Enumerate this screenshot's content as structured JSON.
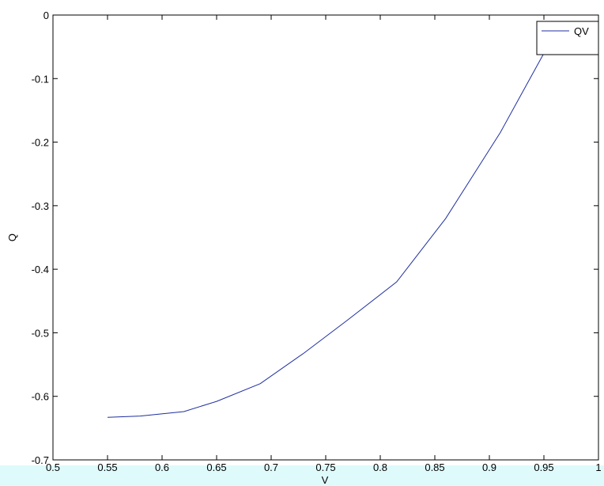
{
  "chart_data": {
    "type": "line",
    "title": "",
    "xlabel": "V",
    "ylabel": "Q",
    "xlim": [
      0.5,
      1.0
    ],
    "ylim": [
      -0.7,
      0
    ],
    "x_ticks": [
      0.5,
      0.55,
      0.6,
      0.65,
      0.7,
      0.75,
      0.8,
      0.85,
      0.9,
      0.95,
      1
    ],
    "y_ticks": [
      0,
      -0.1,
      -0.2,
      -0.3,
      -0.4,
      -0.5,
      -0.6,
      -0.7
    ],
    "x_tick_labels": [
      "0.5",
      "0.55",
      "0.6",
      "0.65",
      "0.7",
      "0.75",
      "0.8",
      "0.85",
      "0.9",
      "0.95",
      "1"
    ],
    "y_tick_labels": [
      "0",
      "-0.1",
      "-0.2",
      "-0.3",
      "-0.4",
      "-0.5",
      "-0.6",
      "-0.7"
    ],
    "grid": false,
    "legend_position": "top-right",
    "colors": {
      "line": "#1f2fa0",
      "axes": "#000000",
      "background": "#ffffff",
      "bottom_band": "#dffafb"
    },
    "series": [
      {
        "name": "QV",
        "x": [
          0.55,
          0.58,
          0.62,
          0.65,
          0.69,
          0.73,
          0.77,
          0.815,
          0.86,
          0.91,
          0.95,
          0.99
        ],
        "y": [
          -0.633,
          -0.631,
          -0.624,
          -0.608,
          -0.58,
          -0.532,
          -0.48,
          -0.42,
          -0.32,
          -0.185,
          -0.06,
          -0.06
        ]
      }
    ]
  }
}
